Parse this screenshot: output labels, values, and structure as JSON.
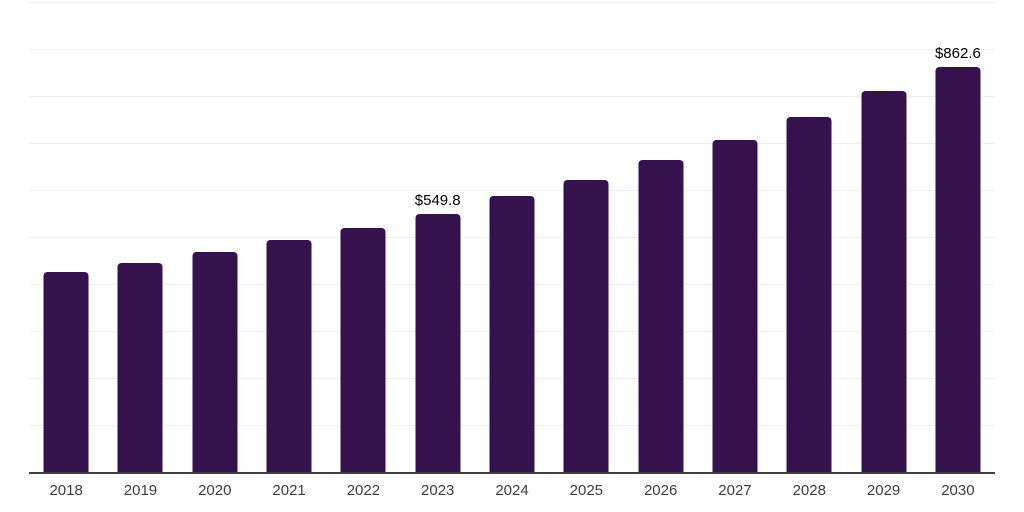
{
  "chart_data": {
    "type": "bar",
    "title": "",
    "xlabel": "",
    "ylabel": "",
    "categories": [
      "2018",
      "2019",
      "2020",
      "2021",
      "2022",
      "2023",
      "2024",
      "2025",
      "2026",
      "2027",
      "2028",
      "2029",
      "2030"
    ],
    "values": [
      425,
      444,
      468,
      494,
      520,
      549.8,
      587,
      622,
      664,
      707,
      755,
      810,
      862.6
    ],
    "data_labels": {
      "2023": "$549.8",
      "2030": "$862.6"
    },
    "ylim": [
      0,
      1000
    ],
    "grid": {
      "horizontal": true,
      "interval": 100,
      "num_light_lines": 10
    },
    "legend_position": "none",
    "colors": {
      "bar": "#35114d",
      "gridline": "#f0f0f1",
      "axis_line": "#3f3f3f",
      "tick_label": "#3d3d3d",
      "data_label": "#000000",
      "background": "#ffffff"
    }
  }
}
